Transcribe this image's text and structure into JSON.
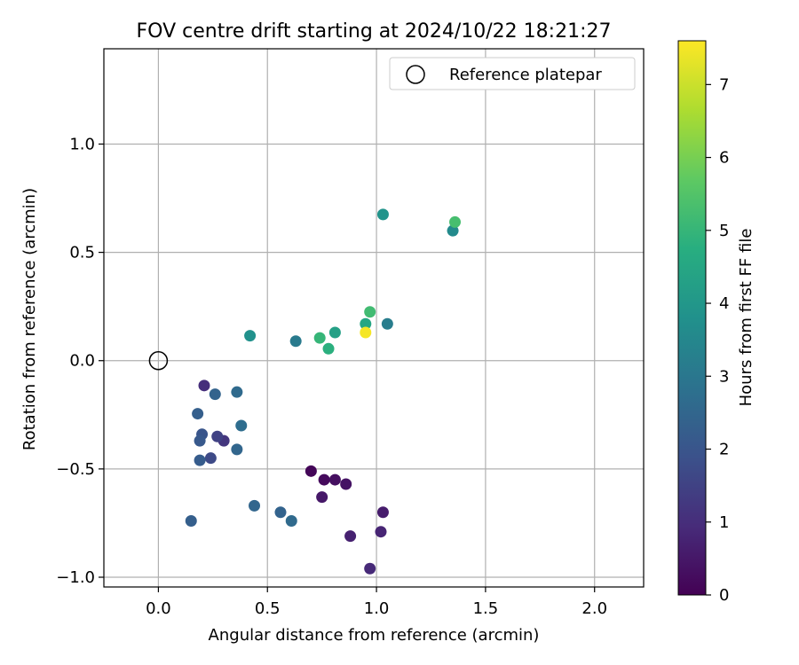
{
  "chart_data": {
    "type": "scatter",
    "title": "FOV centre drift starting at 2024/10/22 18:21:27",
    "xlabel": "Angular distance from reference (arcmin)",
    "ylabel": "Rotation from reference (arcmin)",
    "xlim": [
      -0.25,
      2.225
    ],
    "ylim": [
      -1.045,
      1.44
    ],
    "grid": true,
    "xticks": [
      0.0,
      0.5,
      1.0,
      1.5,
      2.0
    ],
    "xtick_labels": [
      "0.0",
      "0.5",
      "1.0",
      "1.5",
      "2.0"
    ],
    "yticks": [
      -1.0,
      -0.5,
      0.0,
      0.5,
      1.0
    ],
    "ytick_labels": [
      "−1.0",
      "−0.5",
      "0.0",
      "0.5",
      "1.0"
    ],
    "legend": {
      "position": "top-right",
      "label": "Reference platepar"
    },
    "reference_point": {
      "x": 0.0,
      "y": 0.0
    },
    "colorbar": {
      "label": "Hours from first FF file",
      "colormap": "viridis",
      "range": [
        0,
        7.6
      ],
      "ticks": [
        0,
        1,
        2,
        3,
        4,
        5,
        6,
        7
      ],
      "tick_labels": [
        "0",
        "1",
        "2",
        "3",
        "4",
        "5",
        "6",
        "7"
      ]
    },
    "points": [
      {
        "x": 0.7,
        "y": -0.51,
        "hours": 0.1
      },
      {
        "x": 0.76,
        "y": -0.55,
        "hours": 0.2
      },
      {
        "x": 0.81,
        "y": -0.55,
        "hours": 0.3
      },
      {
        "x": 0.86,
        "y": -0.57,
        "hours": 0.4
      },
      {
        "x": 0.75,
        "y": -0.63,
        "hours": 0.5
      },
      {
        "x": 1.03,
        "y": -0.7,
        "hours": 0.6
      },
      {
        "x": 0.88,
        "y": -0.81,
        "hours": 0.7
      },
      {
        "x": 1.02,
        "y": -0.79,
        "hours": 0.8
      },
      {
        "x": 0.97,
        "y": -0.96,
        "hours": 0.9
      },
      {
        "x": 0.21,
        "y": -0.115,
        "hours": 1.0
      },
      {
        "x": 0.3,
        "y": -0.37,
        "hours": 1.2
      },
      {
        "x": 0.27,
        "y": -0.35,
        "hours": 1.5
      },
      {
        "x": 0.24,
        "y": -0.45,
        "hours": 1.7
      },
      {
        "x": 0.2,
        "y": -0.34,
        "hours": 2.0
      },
      {
        "x": 0.19,
        "y": -0.37,
        "hours": 2.1
      },
      {
        "x": 0.19,
        "y": -0.46,
        "hours": 2.2
      },
      {
        "x": 0.18,
        "y": -0.245,
        "hours": 2.3
      },
      {
        "x": 0.15,
        "y": -0.74,
        "hours": 2.3
      },
      {
        "x": 0.26,
        "y": -0.155,
        "hours": 2.4
      },
      {
        "x": 0.56,
        "y": -0.7,
        "hours": 2.4
      },
      {
        "x": 0.44,
        "y": -0.67,
        "hours": 2.5
      },
      {
        "x": 0.36,
        "y": -0.41,
        "hours": 2.5
      },
      {
        "x": 0.61,
        "y": -0.74,
        "hours": 2.6
      },
      {
        "x": 0.36,
        "y": -0.145,
        "hours": 2.6
      },
      {
        "x": 0.38,
        "y": -0.3,
        "hours": 2.7
      },
      {
        "x": 0.63,
        "y": 0.09,
        "hours": 3.1
      },
      {
        "x": 1.05,
        "y": 0.17,
        "hours": 3.2
      },
      {
        "x": 1.35,
        "y": 0.6,
        "hours": 3.6
      },
      {
        "x": 0.42,
        "y": 0.115,
        "hours": 3.8
      },
      {
        "x": 1.03,
        "y": 0.675,
        "hours": 3.9
      },
      {
        "x": 0.81,
        "y": 0.13,
        "hours": 4.3
      },
      {
        "x": 0.95,
        "y": 0.17,
        "hours": 4.5
      },
      {
        "x": 0.78,
        "y": 0.055,
        "hours": 4.8
      },
      {
        "x": 0.74,
        "y": 0.105,
        "hours": 5.0
      },
      {
        "x": 0.97,
        "y": 0.225,
        "hours": 5.2
      },
      {
        "x": 1.36,
        "y": 0.64,
        "hours": 5.3
      },
      {
        "x": 0.95,
        "y": 0.13,
        "hours": 7.5
      }
    ]
  }
}
